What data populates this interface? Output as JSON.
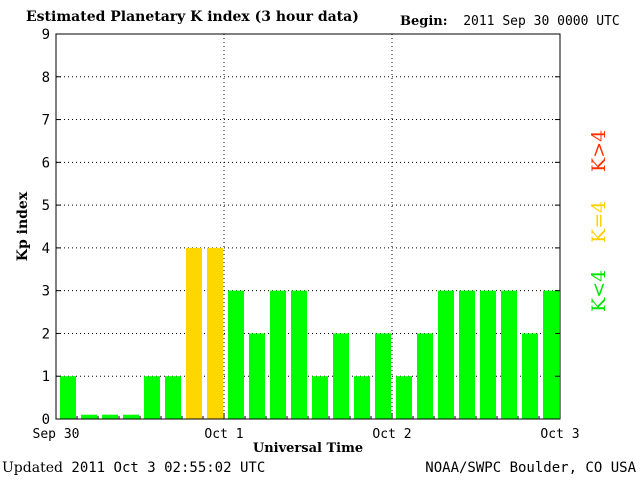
{
  "header": {
    "title": "Estimated Planetary K index (3 hour data)",
    "begin_label": "Begin:",
    "begin_value": "2011 Sep 30 0000 UTC"
  },
  "footer": {
    "updated_label": "Updated",
    "updated_value": "2011 Oct  3 02:55:02 UTC",
    "source": "NOAA/SWPC Boulder, CO USA"
  },
  "legend": {
    "low": "K<4",
    "equal": "K=4",
    "high": "K>4"
  },
  "colors": {
    "low": "#00ff00",
    "equal": "#ffd700",
    "high": "#ff2000"
  },
  "chart_data": {
    "type": "bar",
    "xlabel": "Universal Time",
    "ylabel": "Kp index",
    "ylim": [
      0,
      9
    ],
    "yticks": [
      "0",
      "1",
      "2",
      "3",
      "4",
      "5",
      "6",
      "7",
      "8",
      "9"
    ],
    "xticks": [
      "Sep 30",
      "Oct 1",
      "Oct 2",
      "Oct 3"
    ],
    "grid": true,
    "bar_interval_hours": 3,
    "values": [
      1,
      0,
      0,
      0,
      1,
      1,
      4,
      4,
      3,
      2,
      3,
      3,
      1,
      2,
      1,
      2,
      1,
      2,
      3,
      3,
      3,
      3,
      2,
      3
    ]
  }
}
